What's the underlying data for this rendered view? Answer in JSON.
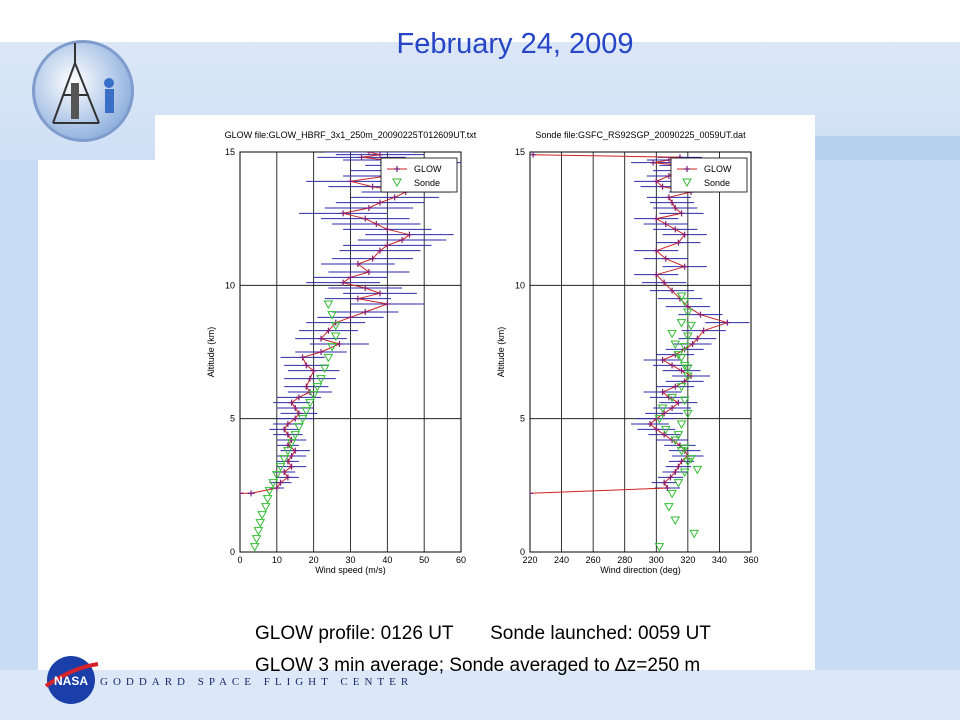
{
  "slide": {
    "title": "February 24, 2009",
    "caption_line1": "GLOW profile: 0126 UT       Sonde launched: 0059 UT",
    "caption_line2": "GLOW 3 min average; Sonde averaged to ",
    "caption_delta": "∆",
    "caption_line2_end": "z=250 m",
    "footer": "GODDARD SPACE FLIGHT CENTER",
    "nasa_label": "NASA"
  },
  "colors": {
    "glow_line": "#cc2222",
    "glow_marker": "#7a1f7a",
    "glow_err": "#2a2aa8",
    "sonde": "#33bb33",
    "title": "#2746c7"
  },
  "chart_data": [
    {
      "type": "line",
      "title": "GLOW file:GLOW_HBRF_3x1_250m_20090225T012609UT.txt",
      "xlabel": "Wind speed (m/s)",
      "ylabel": "Altitude (km)",
      "xlim": [
        0,
        60
      ],
      "ylim": [
        0,
        15
      ],
      "xticks": [
        0,
        10,
        20,
        30,
        40,
        50,
        60
      ],
      "yticks": [
        0,
        5,
        10,
        15
      ],
      "grid": "on",
      "legend_position": "top-right",
      "legend": [
        "GLOW",
        "Sonde"
      ],
      "series": [
        {
          "name": "GLOW",
          "x": [
            0,
            3,
            10,
            11,
            13,
            12,
            14,
            13,
            14,
            15,
            13,
            14,
            13,
            12,
            13,
            15,
            16,
            15,
            14,
            16,
            19,
            18,
            19,
            20,
            18,
            17,
            22,
            27,
            22,
            24,
            26,
            30,
            34,
            40,
            32,
            38,
            34,
            28,
            30,
            35,
            32,
            36,
            38,
            40,
            44,
            46,
            40,
            37,
            34,
            28,
            35,
            38,
            42,
            45,
            36,
            30,
            40,
            42,
            46,
            50,
            40,
            33,
            38,
            35
          ],
          "y": [
            2.2,
            2.2,
            2.4,
            2.6,
            2.8,
            3.0,
            3.2,
            3.4,
            3.6,
            3.8,
            4.0,
            4.2,
            4.4,
            4.6,
            4.8,
            5.0,
            5.2,
            5.4,
            5.6,
            5.8,
            6.0,
            6.2,
            6.5,
            6.8,
            7.0,
            7.3,
            7.5,
            7.8,
            8.0,
            8.3,
            8.6,
            8.8,
            9.0,
            9.3,
            9.5,
            9.7,
            9.9,
            10.1,
            10.3,
            10.5,
            10.8,
            11.0,
            11.3,
            11.5,
            11.7,
            11.9,
            12.1,
            12.3,
            12.5,
            12.7,
            12.9,
            13.1,
            13.3,
            13.5,
            13.7,
            13.9,
            14.1,
            14.3,
            14.5,
            14.6,
            14.7,
            14.8,
            14.9,
            15.0
          ],
          "err": [
            1,
            1,
            2,
            3,
            3,
            3,
            4,
            3,
            4,
            4,
            3,
            4,
            4,
            4,
            4,
            5,
            5,
            5,
            5,
            6,
            6,
            6,
            7,
            7,
            6,
            6,
            7,
            8,
            7,
            8,
            8,
            9,
            9,
            10,
            9,
            10,
            10,
            10,
            10,
            11,
            10,
            11,
            11,
            12,
            12,
            12,
            12,
            12,
            12,
            12,
            12,
            12,
            12,
            12,
            12,
            12,
            12,
            12,
            12,
            12,
            12,
            12,
            12,
            12
          ]
        },
        {
          "name": "Sonde",
          "x": [
            4,
            4.5,
            5,
            5.5,
            6,
            7,
            7.5,
            8,
            9,
            10,
            11,
            12,
            13,
            14,
            15,
            16,
            17,
            18,
            19,
            20,
            21,
            22,
            23,
            24,
            25,
            26,
            26,
            25,
            24
          ],
          "y": [
            0.2,
            0.5,
            0.8,
            1.1,
            1.4,
            1.7,
            2.0,
            2.3,
            2.6,
            2.9,
            3.2,
            3.5,
            3.8,
            4.1,
            4.4,
            4.7,
            5.0,
            5.3,
            5.6,
            5.9,
            6.2,
            6.5,
            6.9,
            7.3,
            7.7,
            8.1,
            8.5,
            8.9,
            9.3
          ]
        }
      ]
    },
    {
      "type": "line",
      "title": "Sonde file:GSFC_RS92SGP_20090225_0059UT.dat",
      "xlabel": "Wind direction (deg)",
      "ylabel": "Altitude (km)",
      "xlim": [
        220,
        360
      ],
      "ylim": [
        0,
        15
      ],
      "xticks": [
        220,
        240,
        260,
        280,
        300,
        320,
        340,
        360
      ],
      "yticks": [
        0,
        5,
        10,
        15
      ],
      "grid": "on",
      "legend_position": "top-right",
      "legend": [
        "GLOW",
        "Sonde"
      ],
      "series": [
        {
          "name": "GLOW",
          "x": [
            220,
            307,
            305,
            309,
            312,
            314,
            316,
            320,
            318,
            315,
            310,
            305,
            300,
            296,
            300,
            305,
            310,
            314,
            308,
            304,
            312,
            318,
            322,
            316,
            310,
            304,
            312,
            318,
            323,
            326,
            330,
            345,
            328,
            320,
            315,
            310,
            305,
            300,
            318,
            306,
            300,
            314,
            318,
            312,
            306,
            300,
            316,
            312,
            310,
            308,
            322,
            304,
            300,
            308,
            312,
            316,
            298,
            308,
            315,
            222
          ],
          "y": [
            2.2,
            2.4,
            2.6,
            2.8,
            3.0,
            3.2,
            3.4,
            3.6,
            3.8,
            4.0,
            4.2,
            4.4,
            4.6,
            4.8,
            5.0,
            5.2,
            5.4,
            5.6,
            5.8,
            6.0,
            6.2,
            6.4,
            6.6,
            6.8,
            7.0,
            7.2,
            7.4,
            7.6,
            7.8,
            8.0,
            8.3,
            8.6,
            8.9,
            9.2,
            9.5,
            9.8,
            10.1,
            10.4,
            10.7,
            11.0,
            11.3,
            11.6,
            11.9,
            12.1,
            12.3,
            12.5,
            12.7,
            12.9,
            13.1,
            13.3,
            13.5,
            13.7,
            13.9,
            14.1,
            14.3,
            14.5,
            14.6,
            14.7,
            14.8,
            14.9
          ],
          "err": [
            0,
            8,
            8,
            8,
            8,
            8,
            8,
            10,
            10,
            10,
            10,
            10,
            12,
            12,
            12,
            12,
            12,
            12,
            12,
            12,
            12,
            12,
            12,
            12,
            12,
            12,
            12,
            12,
            12,
            12,
            14,
            14,
            14,
            14,
            14,
            14,
            14,
            14,
            14,
            14,
            14,
            14,
            14,
            14,
            14,
            14,
            14,
            14,
            14,
            14,
            14,
            14,
            14,
            14,
            14,
            14,
            14,
            14,
            14,
            0
          ]
        },
        {
          "name": "Sonde",
          "x": [
            302,
            324,
            312,
            308,
            310,
            314,
            318,
            320,
            316,
            312,
            306,
            302,
            304,
            310,
            316,
            320,
            318,
            314,
            312,
            310,
            316,
            320,
            318,
            316,
            318,
            320,
            316,
            314,
            318,
            322,
            326,
            320,
            316,
            318,
            320,
            322
          ],
          "y": [
            0.2,
            0.7,
            1.2,
            1.7,
            2.2,
            2.6,
            3.0,
            3.4,
            3.8,
            4.2,
            4.6,
            5.0,
            5.4,
            5.8,
            6.2,
            6.6,
            7.0,
            7.4,
            7.8,
            8.2,
            8.6,
            9.0,
            9.4,
            9.6,
            5.7,
            5.2,
            4.8,
            4.4,
            3.9,
            3.5,
            3.1,
            6.9,
            7.3,
            7.7,
            8.1,
            8.5
          ]
        }
      ]
    }
  ]
}
